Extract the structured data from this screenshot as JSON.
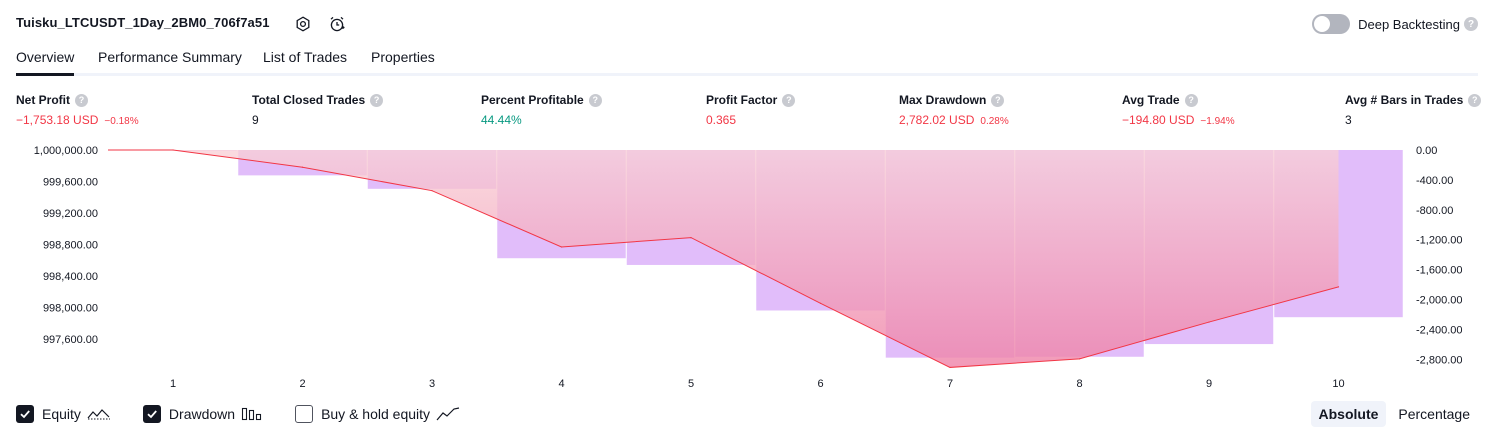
{
  "header": {
    "title": "Tuisku_LTCUSDT_1Day_2BM0_706f7a51",
    "settings_icon": "settings-hexagon-icon",
    "alert_icon": "alarm-clock-icon",
    "deep_backtesting_label": "Deep Backtesting",
    "deep_backtesting_enabled": false,
    "help_glyph": "?"
  },
  "tabs": [
    {
      "label": "Overview",
      "active": true
    },
    {
      "label": "Performance Summary",
      "active": false
    },
    {
      "label": "List of Trades",
      "active": false
    },
    {
      "label": "Properties",
      "active": false
    }
  ],
  "stats": [
    {
      "label": "Net Profit",
      "value": "−1,753.18 USD",
      "pct": "−0.18%",
      "tone": "neg"
    },
    {
      "label": "Total Closed Trades",
      "value": "9",
      "pct": "",
      "tone": "neu"
    },
    {
      "label": "Percent Profitable",
      "value": "44.44%",
      "pct": "",
      "tone": "pos"
    },
    {
      "label": "Profit Factor",
      "value": "0.365",
      "pct": "",
      "tone": "neg"
    },
    {
      "label": "Max Drawdown",
      "value": "2,782.02 USD",
      "pct": "0.28%",
      "tone": "neg"
    },
    {
      "label": "Avg Trade",
      "value": "−194.80 USD",
      "pct": "−1.94%",
      "tone": "neg"
    },
    {
      "label": "Avg # Bars in Trades",
      "value": "3",
      "pct": "",
      "tone": "neu"
    }
  ],
  "colors": {
    "equity_line": "#f23645",
    "drawdown_bar": "#e1bdfa",
    "equity_fill_top": "#f9d0d6",
    "equity_fill_bottom": "#ee82a8",
    "negative": "#f23645",
    "positive": "#089981"
  },
  "chart_data": {
    "type": "line",
    "x": [
      1,
      2,
      3,
      4,
      5,
      6,
      7,
      8,
      9,
      10
    ],
    "series": [
      {
        "values": [
          1000000.0,
          999780.0,
          999480.0,
          998760.0,
          998880.0,
          998040.0,
          997220.0,
          997330.0,
          997800.0,
          998250.0
        ]
      },
      {
        "values": [
          0.0,
          -340.0,
          -520.0,
          -1450.0,
          -1540.0,
          -2150.0,
          -2782.02,
          -2770.0,
          -2600.0,
          -2240.0
        ]
      }
    ],
    "left_axis": {
      "ticks": [
        "1,000,000.00",
        "999,600.00",
        "999,200.00",
        "998,800.00",
        "998,400.00",
        "998,000.00",
        "997,600.00"
      ],
      "ylim": [
        997200.0,
        1000000.0
      ]
    },
    "right_axis": {
      "ticks": [
        "0.00",
        "-400.00",
        "-800.00",
        "-1,200.00",
        "-1,600.00",
        "-2,000.00",
        "-2,400.00",
        "-2,800.00"
      ],
      "ylim": [
        -2800.0,
        0.0
      ]
    },
    "x_tick_labels": [
      "1",
      "2",
      "3",
      "4",
      "5",
      "6",
      "7",
      "8",
      "9",
      "10"
    ]
  },
  "legend": [
    {
      "label": "Equity",
      "checked": true,
      "icon": "equity-line-icon"
    },
    {
      "label": "Drawdown",
      "checked": true,
      "icon": "drawdown-bars-icon"
    },
    {
      "label": "Buy & hold equity",
      "checked": false,
      "icon": "buy-hold-line-icon"
    }
  ],
  "modes": [
    {
      "label": "Absolute",
      "active": true
    },
    {
      "label": "Percentage",
      "active": false
    }
  ]
}
